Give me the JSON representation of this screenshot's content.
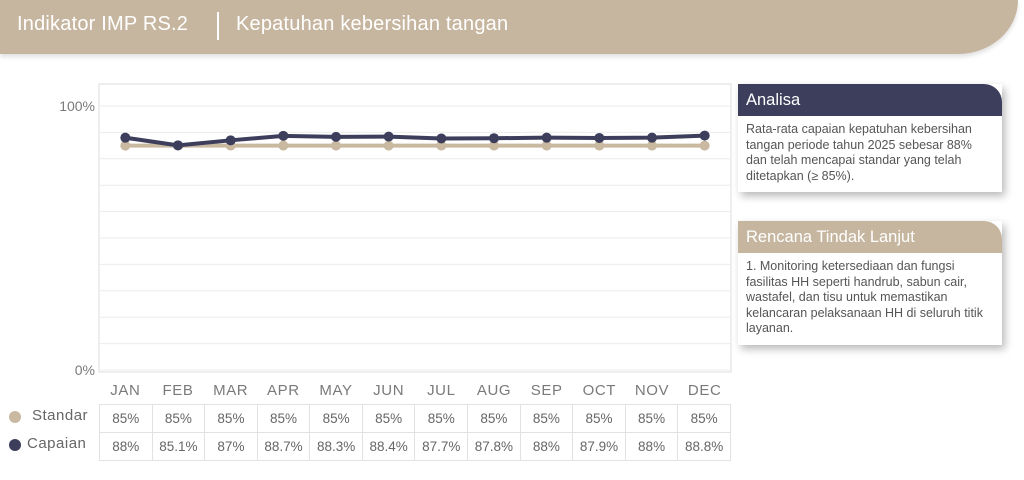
{
  "header": {
    "title": "Indikator IMP RS.2",
    "subtitle": "Kepatuhan kebersihan tangan"
  },
  "chart_data": {
    "type": "line",
    "categories": [
      "JAN",
      "FEB",
      "MAR",
      "APR",
      "MAY",
      "JUN",
      "JUL",
      "AUG",
      "SEP",
      "OCT",
      "NOV",
      "DEC"
    ],
    "series": [
      {
        "name": "Standar",
        "color": "#c9b9a0",
        "values": [
          85,
          85,
          85,
          85,
          85,
          85,
          85,
          85,
          85,
          85,
          85,
          85
        ]
      },
      {
        "name": "Capaian",
        "color": "#3c3e5c",
        "values": [
          88,
          85.1,
          87,
          88.7,
          88.3,
          88.4,
          87.7,
          87.8,
          88,
          87.9,
          88,
          88.8
        ]
      }
    ],
    "ylim": [
      0,
      100
    ],
    "y_ticks": [
      "0%",
      "100%"
    ],
    "grid": true,
    "legend": "bottom-left table",
    "table": {
      "Standar": [
        "85%",
        "85%",
        "85%",
        "85%",
        "85%",
        "85%",
        "85%",
        "85%",
        "85%",
        "85%",
        "85%",
        "85%"
      ],
      "Capaian": [
        "88%",
        "85.1%",
        "87%",
        "88.7%",
        "88.3%",
        "88.4%",
        "87.7%",
        "87.8%",
        "88%",
        "87.9%",
        "88%",
        "88.8%"
      ]
    }
  },
  "analisa": {
    "title": "Analisa",
    "text": "Rata-rata capaian kepatuhan kebersihan tangan periode tahun 2025 sebesar 88% dan telah mencapai standar yang telah ditetapkan (≥ 85%).",
    "header_color": "#3c3e5c"
  },
  "rencana": {
    "title": "Rencana Tindak Lanjut",
    "text": "1. Monitoring ketersediaan dan fungsi fasilitas HH seperti handrub, sabun cair, wastafel, dan tisu untuk memastikan kelancaran pelaksanaan HH di seluruh titik layanan.",
    "header_color": "#c6b69f"
  }
}
